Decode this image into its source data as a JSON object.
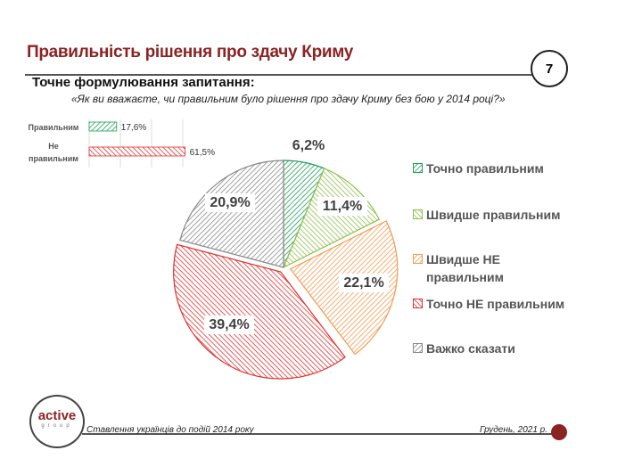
{
  "header": {
    "title": "Правильність рішення про здачу Криму",
    "page_number": "7",
    "subtitle": "Точне формулювання запитання:",
    "question": "«Як ви вважаєте, чи правильним було рішення  про здачу Криму без бою у 2014 році?»"
  },
  "footer": {
    "logo_main": "active",
    "logo_sub": "group",
    "left_text": "Ставлення українців до подій 2014 року",
    "right_text": "Грудень, 2021 р."
  },
  "colors": {
    "brand": "#8b2323"
  },
  "chart_data": [
    {
      "type": "bar",
      "orientation": "horizontal",
      "categories": [
        "Правильним",
        "Не правильним"
      ],
      "category_lines": [
        [
          "Правильним"
        ],
        [
          "Не",
          "правильним"
        ]
      ],
      "values": [
        17.6,
        61.5
      ],
      "labels": [
        "17,6%",
        "61,5%"
      ],
      "colors": [
        "#1e9e5a",
        "#e03030"
      ],
      "xlim": [
        0,
        80
      ],
      "grid": true
    },
    {
      "type": "pie",
      "categories": [
        "Точно правильним",
        "Швидше правильним",
        "Швидше НЕ правильним",
        "Точно НЕ правильним",
        "Важко сказати"
      ],
      "legend_lines": [
        [
          "Точно правильним"
        ],
        [
          "Швидше правильним"
        ],
        [
          "Швидше НЕ",
          "правильним"
        ],
        [
          "Точно НЕ правильним"
        ],
        [
          "Важко сказати"
        ]
      ],
      "values": [
        6.2,
        11.4,
        22.1,
        39.4,
        20.9
      ],
      "labels": [
        "6,2%",
        "11,4%",
        "22,1%",
        "39,4%",
        "20,9%"
      ],
      "colors": [
        "#1e9e5a",
        "#8fbf4a",
        "#f09a50",
        "#e03030",
        "#888888"
      ],
      "legend_placement": "right",
      "pattern": "diagonal-hatch"
    }
  ]
}
